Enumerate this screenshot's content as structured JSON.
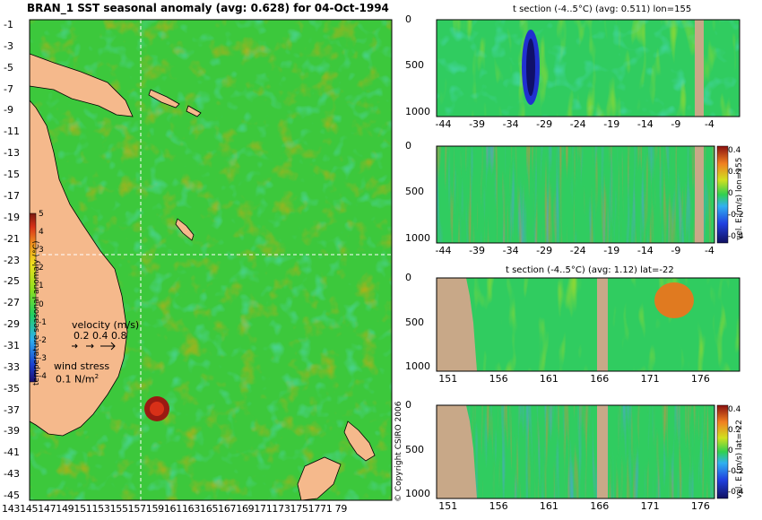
{
  "main_map": {
    "title": "BRAN_1 SST seasonal anomaly (avg: 0.628) for 04-Oct-1994",
    "y_ticks": [
      "-1",
      "-3",
      "-5",
      "-7",
      "-9",
      "-11",
      "-13",
      "-15",
      "-17",
      "-19",
      "-21",
      "-23",
      "-25",
      "-27",
      "-29",
      "-31",
      "-33",
      "-35",
      "-37",
      "-39",
      "-41",
      "-43",
      "-45"
    ],
    "x_ticks_text": "1431451471491511531551571591611631651671691711731751771 79",
    "colorbar_ticks": [
      "5",
      "4",
      "3",
      "2",
      "1",
      "0",
      "-1",
      "-2",
      "-3",
      "-4"
    ],
    "colorbar_label": "temperature seasonal anomaly (°C)",
    "velocity_label": "velocity (m/s)",
    "velocity_scale": "0.2 0.4 0.8",
    "windstress_label": "wind stress",
    "windstress_scale": "0.1 N/m",
    "windstress_sup": "2"
  },
  "copyright": "© Copyright CSIRO 2006",
  "panels": {
    "p1": {
      "title": "t section (-4..5°C) (avg: 0.511) lon=155",
      "x_ticks": [
        "-44",
        "-39",
        "-34",
        "-29",
        "-24",
        "-19",
        "-14",
        "-9",
        "-4"
      ],
      "y_ticks": [
        "0",
        "500",
        "1000"
      ]
    },
    "p2": {
      "x_ticks": [
        "-44",
        "-39",
        "-34",
        "-29",
        "-24",
        "-19",
        "-14",
        "-9",
        "-4"
      ],
      "y_ticks": [
        "0",
        "500",
        "1000"
      ],
      "cb_label": "vel. E (m/s) lon=155",
      "cb_ticks": [
        "0.4",
        "0.2",
        "0",
        "-0.2",
        "-0.4"
      ]
    },
    "p3": {
      "title": "t section (-4..5°C) (avg: 1.12) lat=-22",
      "x_ticks": [
        "151",
        "156",
        "161",
        "166",
        "171",
        "176"
      ],
      "y_ticks": [
        "0",
        "500",
        "1000"
      ]
    },
    "p4": {
      "x_ticks": [
        "151",
        "156",
        "161",
        "166",
        "171",
        "176"
      ],
      "y_ticks": [
        "0",
        "500",
        "1000"
      ],
      "cb_label": "vel. E (m/s) lat=-22",
      "cb_ticks": [
        "0.4",
        "0.2",
        "0",
        "-0.2",
        "-0.4"
      ]
    }
  },
  "chart_data": [
    {
      "type": "heatmap",
      "title": "BRAN_1 SST seasonal anomaly (avg: 0.628) for 04-Oct-1994",
      "xlabel": "",
      "ylabel": "",
      "xlim": [
        143,
        180
      ],
      "ylim": [
        -45,
        0
      ],
      "colorbar": {
        "label": "temperature seasonal anomaly (°C)",
        "range": [
          -4,
          5
        ]
      },
      "average": 0.628,
      "date": "04-Oct-1994",
      "legend_placement": "left"
    },
    {
      "type": "heatmap",
      "title": "t section (-4..5°C) (avg: 0.511) lon=155",
      "xlim": [
        -45,
        0
      ],
      "ylim": [
        1050,
        0
      ],
      "average": 0.511
    },
    {
      "type": "heatmap",
      "title": "",
      "xlim": [
        -45,
        0
      ],
      "ylim": [
        1050,
        0
      ],
      "colorbar": {
        "label": "vel. E (m/s) lon=155",
        "range": [
          -0.4,
          0.4
        ]
      }
    },
    {
      "type": "heatmap",
      "title": "t section (-4..5°C) (avg: 1.12) lat=-22",
      "xlim": [
        150,
        180
      ],
      "ylim": [
        1050,
        0
      ],
      "average": 1.12
    },
    {
      "type": "heatmap",
      "title": "",
      "xlim": [
        150,
        180
      ],
      "ylim": [
        1050,
        0
      ],
      "colorbar": {
        "label": "vel. E (m/s) lat=-22",
        "range": [
          -0.4,
          0.4
        ]
      }
    }
  ]
}
